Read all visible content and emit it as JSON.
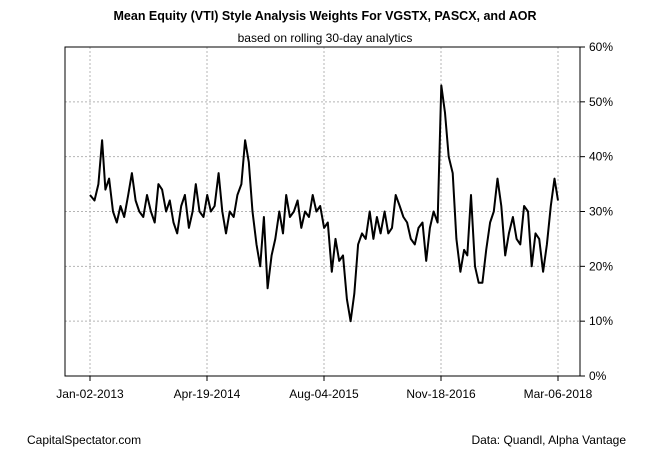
{
  "chart_data": {
    "type": "line",
    "title": "Mean Equity (VTI) Style Analysis Weights For VGSTX, PASCX, and AOR",
    "subtitle": "based on rolling 30-day analytics",
    "xlabel": "",
    "ylabel": "",
    "x_ticks": [
      "Jan-02-2013",
      "Apr-19-2014",
      "Aug-04-2015",
      "Nov-18-2016",
      "Mar-06-2018"
    ],
    "y_ticks": [
      "0%",
      "10%",
      "20%",
      "30%",
      "40%",
      "50%",
      "60%"
    ],
    "ylim": [
      0,
      60
    ],
    "xlim": [
      "2013-01-02",
      "2018-03-06"
    ],
    "grid": true,
    "y_axis_side": "right",
    "line_color": "#000000",
    "series": [
      {
        "x": [
          "2013-01-02",
          "2013-01-20",
          "2013-02-05",
          "2013-02-20",
          "2013-03-05",
          "2013-03-20",
          "2013-04-05",
          "2013-04-20",
          "2013-05-05",
          "2013-05-20",
          "2013-06-05",
          "2013-06-20",
          "2013-07-05",
          "2013-07-20",
          "2013-08-05",
          "2013-08-20",
          "2013-09-05",
          "2013-09-20",
          "2013-10-05",
          "2013-10-20",
          "2013-11-05",
          "2013-11-20",
          "2013-12-05",
          "2013-12-20",
          "2014-01-05",
          "2014-01-20",
          "2014-02-05",
          "2014-02-20",
          "2014-03-05",
          "2014-03-20",
          "2014-04-05",
          "2014-04-20",
          "2014-05-05",
          "2014-05-20",
          "2014-06-05",
          "2014-06-20",
          "2014-07-05",
          "2014-07-20",
          "2014-08-05",
          "2014-08-20",
          "2014-09-05",
          "2014-09-20",
          "2014-10-05",
          "2014-10-20",
          "2014-11-05",
          "2014-11-20",
          "2014-12-05",
          "2014-12-20",
          "2015-01-05",
          "2015-01-20",
          "2015-02-05",
          "2015-02-20",
          "2015-03-05",
          "2015-03-20",
          "2015-04-05",
          "2015-04-20",
          "2015-05-05",
          "2015-05-20",
          "2015-06-05",
          "2015-06-20",
          "2015-07-05",
          "2015-07-20",
          "2015-08-05",
          "2015-08-20",
          "2015-09-05",
          "2015-09-20",
          "2015-10-05",
          "2015-10-20",
          "2015-11-05",
          "2015-11-20",
          "2015-12-05",
          "2015-12-20",
          "2016-01-05",
          "2016-01-20",
          "2016-02-05",
          "2016-02-20",
          "2016-03-05",
          "2016-03-20",
          "2016-04-05",
          "2016-04-20",
          "2016-05-05",
          "2016-05-20",
          "2016-06-05",
          "2016-06-20",
          "2016-07-05",
          "2016-07-20",
          "2016-08-05",
          "2016-08-20",
          "2016-09-05",
          "2016-09-20",
          "2016-10-05",
          "2016-10-20",
          "2016-11-05",
          "2016-11-20",
          "2016-12-05",
          "2016-12-20",
          "2017-01-05",
          "2017-01-20",
          "2017-02-05",
          "2017-02-20",
          "2017-03-05",
          "2017-03-20",
          "2017-04-05",
          "2017-04-20",
          "2017-05-05",
          "2017-05-20",
          "2017-06-05",
          "2017-06-20",
          "2017-07-05",
          "2017-07-20",
          "2017-08-05",
          "2017-08-20",
          "2017-09-05",
          "2017-09-20",
          "2017-10-05",
          "2017-10-20",
          "2017-11-05",
          "2017-11-20",
          "2017-12-05",
          "2017-12-20",
          "2018-01-05",
          "2018-01-20",
          "2018-02-05",
          "2018-02-20",
          "2018-03-06"
        ],
        "values": [
          33,
          32,
          35,
          43,
          34,
          36,
          30,
          28,
          31,
          29,
          33,
          37,
          32,
          30,
          29,
          33,
          30,
          28,
          35,
          34,
          30,
          32,
          28,
          26,
          31,
          33,
          27,
          30,
          35,
          30,
          29,
          33,
          30,
          31,
          37,
          30,
          26,
          30,
          29,
          33,
          35,
          43,
          39,
          30,
          24,
          20,
          29,
          16,
          22,
          25,
          30,
          26,
          33,
          29,
          30,
          32,
          27,
          30,
          29,
          33,
          30,
          31,
          27,
          28,
          19,
          25,
          21,
          22,
          14,
          10,
          15,
          24,
          26,
          25,
          30,
          25,
          29,
          26,
          30,
          26,
          27,
          33,
          31,
          29,
          28,
          25,
          24,
          27,
          28,
          21,
          27,
          30,
          28,
          53,
          48,
          40,
          37,
          25,
          19,
          23,
          22,
          33,
          20,
          17,
          17,
          23,
          28,
          30,
          36,
          31,
          22,
          26,
          29,
          25,
          24,
          31,
          30,
          20,
          26,
          25,
          19,
          24,
          31,
          36,
          32
        ]
      }
    ]
  },
  "footer": {
    "left": "CapitalSpectator.com",
    "right": "Data: Quandl, Alpha Vantage"
  }
}
